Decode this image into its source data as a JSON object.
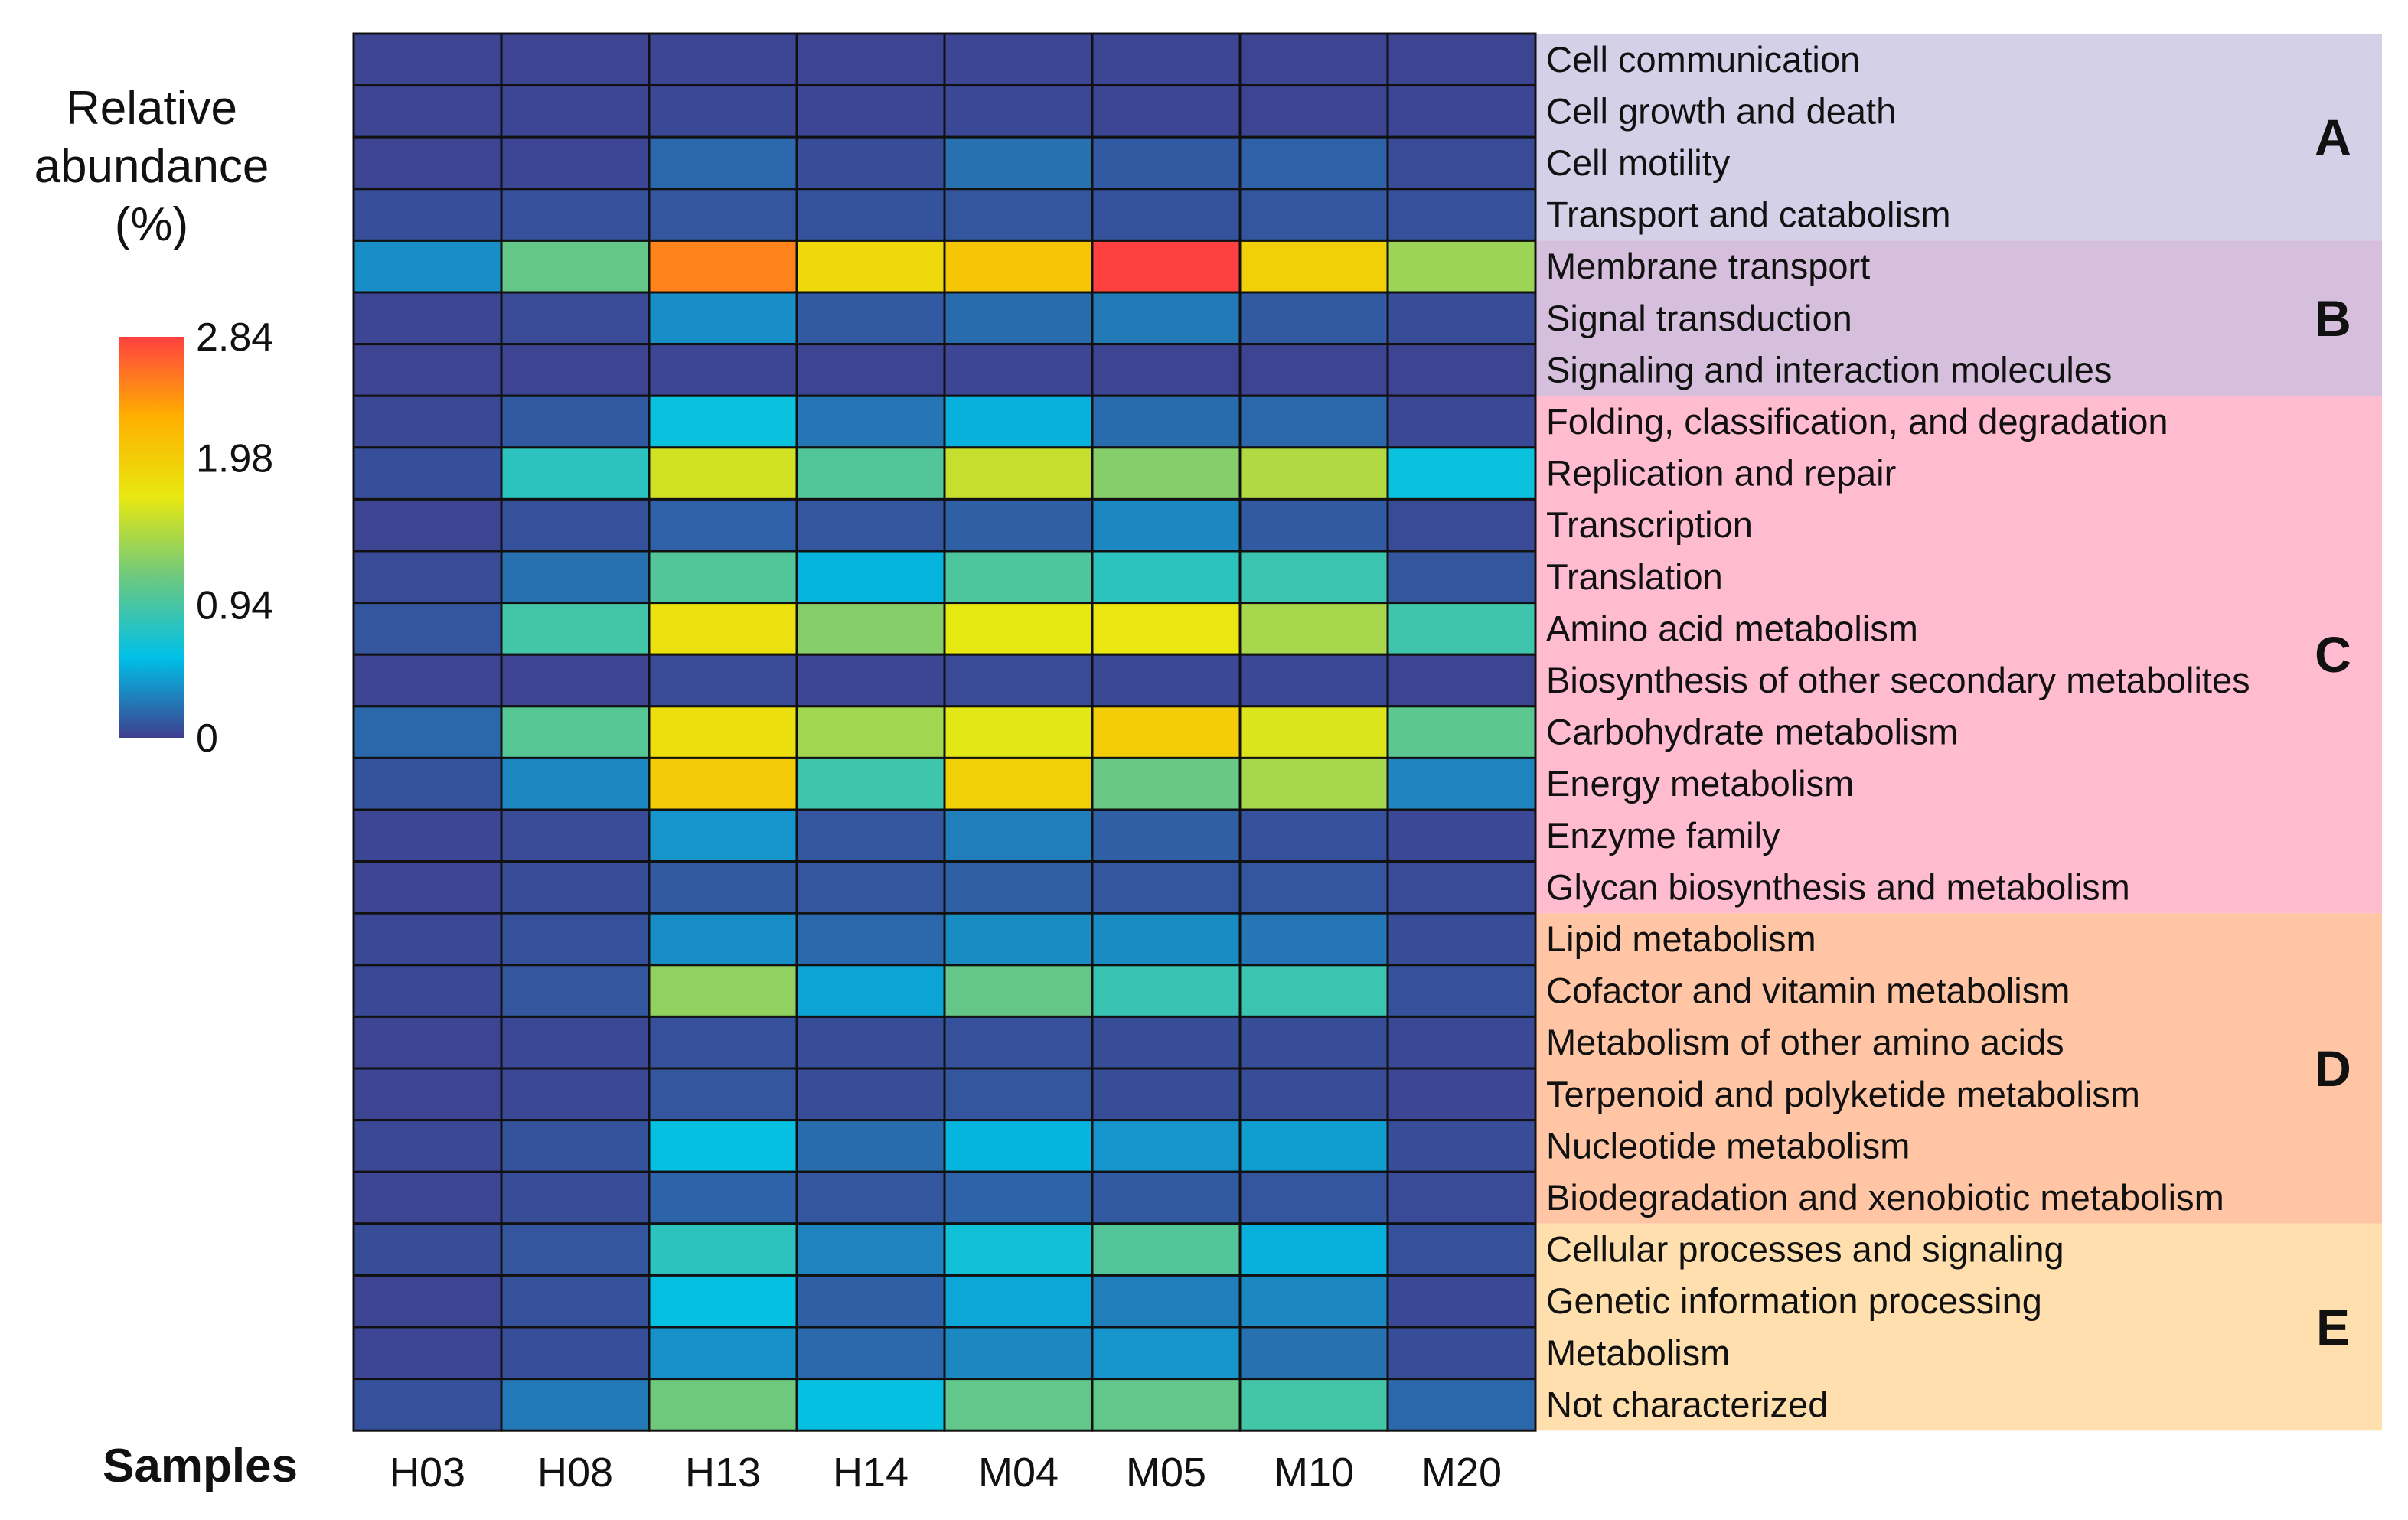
{
  "chart_data": {
    "type": "heatmap",
    "title": "",
    "legend_title": [
      "Relative",
      "abundance",
      "(%)"
    ],
    "colorbar": {
      "min": 0,
      "max": 2.84,
      "ticks": [
        "2.84",
        "1.98",
        "0.94",
        "0"
      ],
      "tick_values": [
        2.84,
        1.98,
        0.94,
        0
      ],
      "colors": [
        "#3f3f8f",
        "#00c0e8",
        "#6cc880",
        "#e8e810",
        "#ffb000",
        "#ff4040"
      ]
    },
    "xlabel": "Samples",
    "columns": [
      "H03",
      "H08",
      "H13",
      "H14",
      "M04",
      "M05",
      "M10",
      "M20"
    ],
    "rows": [
      "Cell communication",
      "Cell growth and death",
      "Cell motility",
      "Transport and catabolism",
      "Membrane transport",
      "Signal transduction",
      "Signaling and interaction molecules",
      "Folding, classification, and degradation",
      "Replication and repair",
      "Transcription",
      "Translation",
      "Amino acid metabolism",
      "Biosynthesis of other secondary metabolites",
      "Carbohydrate metabolism",
      "Energy metabolism",
      "Enzyme family",
      "Glycan biosynthesis and metabolism",
      "Lipid metabolism",
      "Cofactor and vitamin metabolism",
      "Metabolism of other amino acids",
      "Terpenoid and polyketide metabolism",
      "Nucleotide metabolism",
      "Biodegradation and xenobiotic metabolism",
      "Cellular processes and signaling",
      "Genetic information processing",
      "Metabolism",
      "Not characterized"
    ],
    "groups": [
      {
        "label": "A",
        "start": 0,
        "end": 3,
        "color": "#d4d0e8"
      },
      {
        "label": "B",
        "start": 4,
        "end": 6,
        "color": "#d6bfdc"
      },
      {
        "label": "C",
        "start": 7,
        "end": 16,
        "color": "#ffbcd0"
      },
      {
        "label": "D",
        "start": 17,
        "end": 22,
        "color": "#ffc5a4"
      },
      {
        "label": "E",
        "start": 23,
        "end": 26,
        "color": "#ffdfae"
      }
    ],
    "values": [
      [
        0.02,
        0.02,
        0.03,
        0.02,
        0.03,
        0.03,
        0.02,
        0.02
      ],
      [
        0.02,
        0.03,
        0.04,
        0.03,
        0.04,
        0.03,
        0.02,
        0.03
      ],
      [
        0.02,
        0.03,
        0.18,
        0.06,
        0.22,
        0.12,
        0.15,
        0.05
      ],
      [
        0.07,
        0.08,
        0.1,
        0.09,
        0.1,
        0.09,
        0.1,
        0.08
      ],
      [
        0.35,
        1.1,
        2.5,
        1.85,
        2.05,
        2.84,
        1.95,
        1.35
      ],
      [
        0.03,
        0.05,
        0.35,
        0.12,
        0.2,
        0.25,
        0.12,
        0.06
      ],
      [
        0.02,
        0.02,
        0.03,
        0.02,
        0.03,
        0.02,
        0.02,
        0.02
      ],
      [
        0.04,
        0.12,
        0.62,
        0.24,
        0.5,
        0.2,
        0.18,
        0.04
      ],
      [
        0.07,
        0.8,
        1.6,
        1.0,
        1.55,
        1.25,
        1.45,
        0.62
      ],
      [
        0.02,
        0.08,
        0.15,
        0.1,
        0.14,
        0.32,
        0.12,
        0.05
      ],
      [
        0.05,
        0.22,
        1.0,
        0.52,
        0.98,
        0.8,
        0.88,
        0.1
      ],
      [
        0.1,
        0.92,
        1.78,
        1.25,
        1.7,
        1.72,
        1.4,
        0.9
      ],
      [
        0.02,
        0.02,
        0.05,
        0.03,
        0.05,
        0.04,
        0.04,
        0.02
      ],
      [
        0.18,
        1.02,
        1.8,
        1.38,
        1.68,
        1.98,
        1.65,
        1.05
      ],
      [
        0.09,
        0.32,
        2.0,
        0.9,
        1.95,
        1.12,
        1.4,
        0.3
      ],
      [
        0.03,
        0.05,
        0.38,
        0.1,
        0.28,
        0.14,
        0.08,
        0.04
      ],
      [
        0.02,
        0.06,
        0.12,
        0.1,
        0.14,
        0.1,
        0.1,
        0.05
      ],
      [
        0.04,
        0.08,
        0.35,
        0.18,
        0.34,
        0.34,
        0.24,
        0.06
      ],
      [
        0.04,
        0.1,
        1.3,
        0.45,
        1.1,
        0.86,
        0.88,
        0.08
      ],
      [
        0.02,
        0.04,
        0.08,
        0.06,
        0.08,
        0.06,
        0.06,
        0.04
      ],
      [
        0.02,
        0.04,
        0.1,
        0.06,
        0.1,
        0.06,
        0.06,
        0.03
      ],
      [
        0.04,
        0.09,
        0.6,
        0.2,
        0.52,
        0.38,
        0.42,
        0.06
      ],
      [
        0.03,
        0.06,
        0.16,
        0.1,
        0.16,
        0.12,
        0.1,
        0.05
      ],
      [
        0.06,
        0.1,
        0.8,
        0.3,
        0.66,
        1.0,
        0.5,
        0.08
      ],
      [
        0.02,
        0.08,
        0.6,
        0.14,
        0.46,
        0.28,
        0.32,
        0.04
      ],
      [
        0.03,
        0.07,
        0.36,
        0.18,
        0.32,
        0.38,
        0.22,
        0.06
      ],
      [
        0.08,
        0.25,
        1.15,
        0.6,
        1.08,
        1.08,
        0.92,
        0.18
      ]
    ]
  }
}
